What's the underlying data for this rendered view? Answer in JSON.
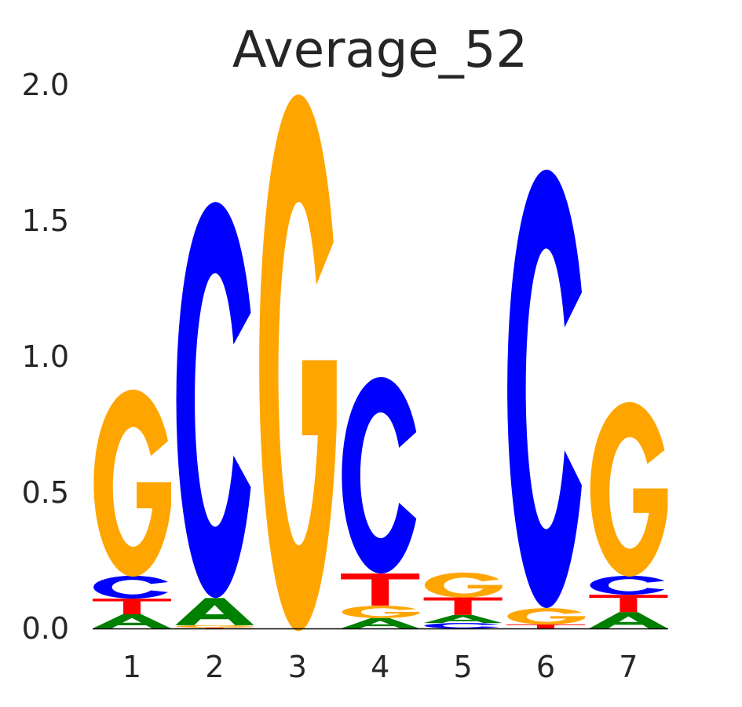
{
  "chart_data": {
    "type": "sequence-logo",
    "title": "Average_52",
    "xlabel": "",
    "ylabel": "",
    "ylim": [
      0,
      2.0
    ],
    "yticks": [
      "0.0",
      "0.5",
      "1.0",
      "1.5",
      "2.0"
    ],
    "yticks_values": [
      0,
      0.5,
      1.0,
      1.5,
      2.0
    ],
    "categories": [
      "1",
      "2",
      "3",
      "4",
      "5",
      "6",
      "7"
    ],
    "colors": {
      "A": "#008000",
      "C": "#0000ff",
      "G": "#ffa500",
      "T": "#ff0000"
    },
    "positions": [
      [
        {
          "letter": "A",
          "height": 0.052
        },
        {
          "letter": "T",
          "height": 0.058
        },
        {
          "letter": "C",
          "height": 0.084
        },
        {
          "letter": "G",
          "height": 0.688
        }
      ],
      [
        {
          "letter": "T",
          "height": 0.003
        },
        {
          "letter": "G",
          "height": 0.009
        },
        {
          "letter": "A",
          "height": 0.1
        },
        {
          "letter": "C",
          "height": 1.457
        }
      ],
      [
        {
          "letter": "G",
          "height": 1.974
        }
      ],
      [
        {
          "letter": "A",
          "height": 0.038
        },
        {
          "letter": "G",
          "height": 0.046
        },
        {
          "letter": "T",
          "height": 0.118
        },
        {
          "letter": "C",
          "height": 0.723
        }
      ],
      [
        {
          "letter": "C",
          "height": 0.02
        },
        {
          "letter": "A",
          "height": 0.03
        },
        {
          "letter": "T",
          "height": 0.064
        },
        {
          "letter": "G",
          "height": 0.092
        }
      ],
      [
        {
          "letter": "T",
          "height": 0.015
        },
        {
          "letter": "G",
          "height": 0.06
        },
        {
          "letter": "C",
          "height": 1.613
        }
      ],
      [
        {
          "letter": "A",
          "height": 0.06
        },
        {
          "letter": "T",
          "height": 0.064
        },
        {
          "letter": "C",
          "height": 0.07
        },
        {
          "letter": "G",
          "height": 0.642
        }
      ]
    ]
  }
}
